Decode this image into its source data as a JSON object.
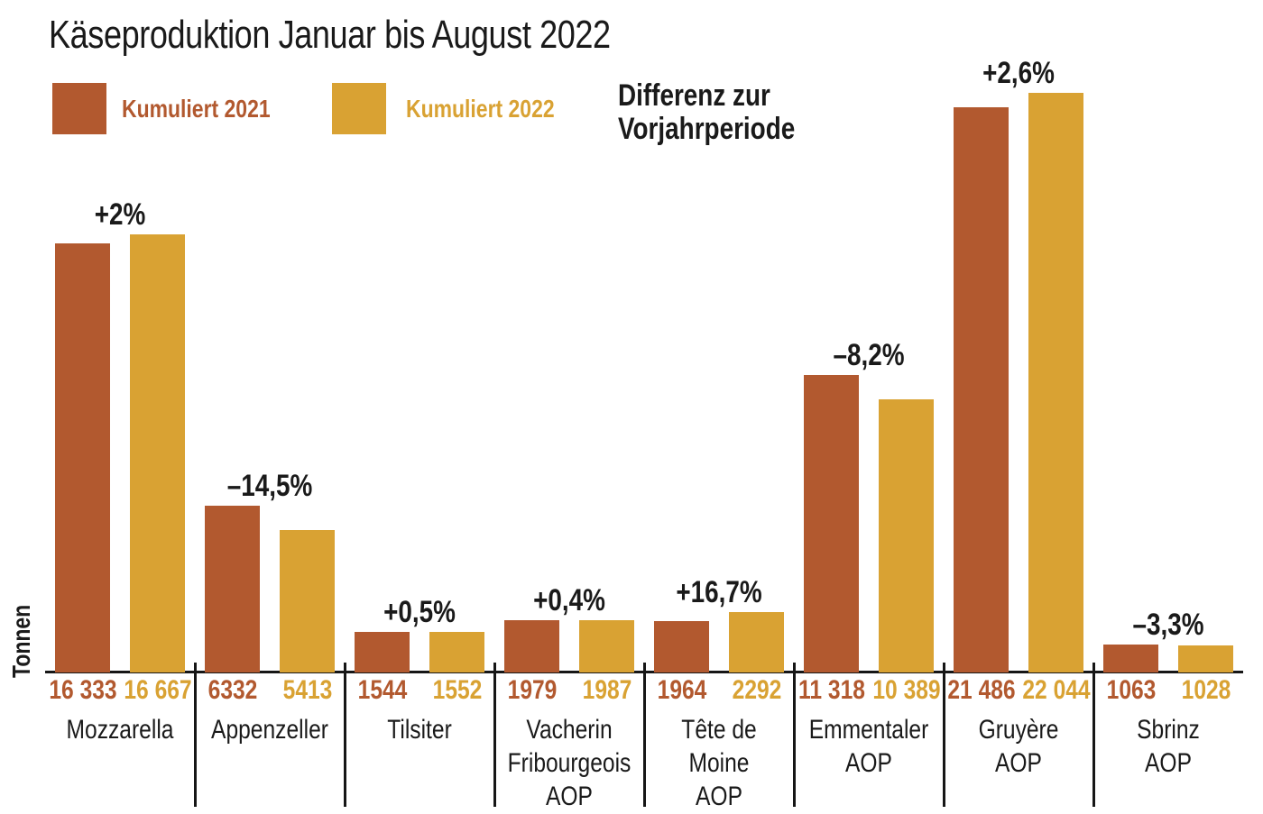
{
  "title": "Käseproduktion Januar bis August 2022",
  "y_axis_label": "Tonnen",
  "legend": {
    "series_2021": "Kumuliert 2021",
    "series_2022": "Kumuliert 2022"
  },
  "annotation": {
    "line1": "Differenz zur",
    "line2": "Vorjahrperiode"
  },
  "colors": {
    "bar_2021": "#b2592f",
    "bar_2022": "#d9a233",
    "text": "#1a1a1a",
    "axis": "#161616"
  },
  "chart_data": {
    "type": "bar",
    "title": "Käseproduktion Januar bis August 2022",
    "xlabel": "",
    "ylabel": "Tonnen",
    "ylim": [
      0,
      22044
    ],
    "grid": false,
    "legend_position": "top-left",
    "categories": [
      {
        "name": "Mozzarella",
        "lines": [
          "Mozzarella"
        ]
      },
      {
        "name": "Appenzeller",
        "lines": [
          "Appenzeller"
        ]
      },
      {
        "name": "Tilsiter",
        "lines": [
          "Tilsiter"
        ]
      },
      {
        "name": "Vacherin Fribourgeois AOP",
        "lines": [
          "Vacherin",
          "Fribourgeois",
          "AOP"
        ]
      },
      {
        "name": "Tête de Moine AOP",
        "lines": [
          "Tête de",
          "Moine",
          "AOP"
        ]
      },
      {
        "name": "Emmentaler AOP",
        "lines": [
          "Emmentaler",
          "AOP"
        ]
      },
      {
        "name": "Gruyère AOP",
        "lines": [
          "Gruyère",
          "AOP"
        ]
      },
      {
        "name": "Sbrinz AOP",
        "lines": [
          "Sbrinz",
          "AOP"
        ]
      }
    ],
    "series": [
      {
        "name": "Kumuliert 2021",
        "color": "#b2592f",
        "values": [
          16333,
          6332,
          1544,
          1979,
          1964,
          11318,
          21486,
          1063
        ],
        "value_labels": [
          "16 333",
          "6332",
          "1544",
          "1979",
          "1964",
          "11 318",
          "21 486",
          "1063"
        ]
      },
      {
        "name": "Kumuliert 2022",
        "color": "#d9a233",
        "values": [
          16667,
          5413,
          1552,
          1987,
          2292,
          10389,
          22044,
          1028
        ],
        "value_labels": [
          "16 667",
          "5413",
          "1552",
          "1987",
          "2292",
          "10 389",
          "22 044",
          "1028"
        ]
      }
    ],
    "difference_labels": [
      "+2%",
      "–14,5%",
      "+0,5%",
      "+0,4%",
      "+16,7%",
      "–8,2%",
      "+2,6%",
      "–3,3%"
    ]
  }
}
